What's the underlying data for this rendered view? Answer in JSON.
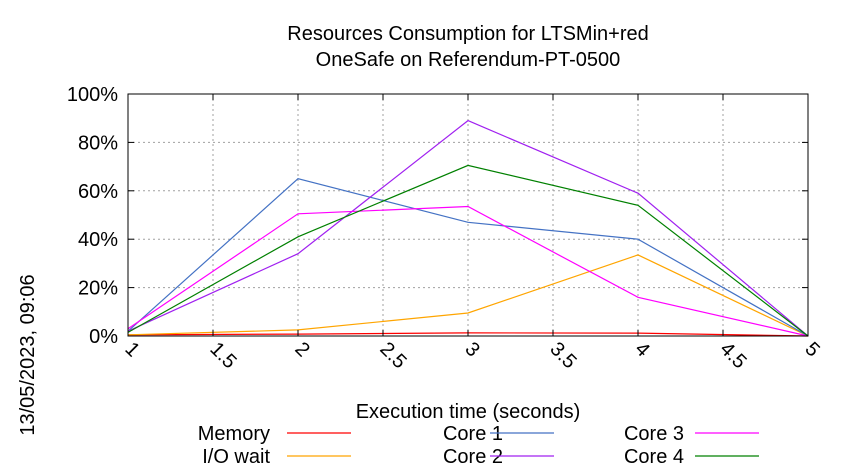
{
  "title_line1": "Resources Consumption for LTSMin+red",
  "title_line2": "OneSafe on Referendum-PT-0500",
  "side_label": "13/05/2023, 09:06",
  "chart_data": {
    "type": "line",
    "title": "Resources Consumption for LTSMin+red OneSafe on Referendum-PT-0500",
    "xlabel": "Execution time (seconds)",
    "ylabel": "",
    "xlim": [
      1,
      5
    ],
    "ylim": [
      0,
      100
    ],
    "x_ticks": [
      "1",
      "1.5",
      "2",
      "2.5",
      "3",
      "3.5",
      "4",
      "4.5",
      "5"
    ],
    "y_ticks": [
      "0%",
      "20%",
      "40%",
      "60%",
      "80%",
      "100%"
    ],
    "grid": true,
    "legend_position": "bottom",
    "x": [
      1,
      2,
      3,
      4,
      5
    ],
    "series": [
      {
        "name": "Memory",
        "color": "#ff0000",
        "values": [
          0.5,
          0.8,
          1.3,
          1.2,
          0
        ]
      },
      {
        "name": "I/O wait",
        "color": "#ffa500",
        "values": [
          0.5,
          2.5,
          9.5,
          33.5,
          0
        ]
      },
      {
        "name": "Core 1",
        "color": "#4472c4",
        "values": [
          2,
          65,
          47,
          40,
          0
        ]
      },
      {
        "name": "Core 2",
        "color": "#a020f0",
        "values": [
          2,
          34,
          89,
          59,
          0
        ]
      },
      {
        "name": "Core 3",
        "color": "#ff00ff",
        "values": [
          3,
          50.5,
          53.5,
          16,
          0
        ]
      },
      {
        "name": "Core 4",
        "color": "#008000",
        "values": [
          1.5,
          41,
          70.5,
          54,
          0
        ]
      }
    ]
  }
}
